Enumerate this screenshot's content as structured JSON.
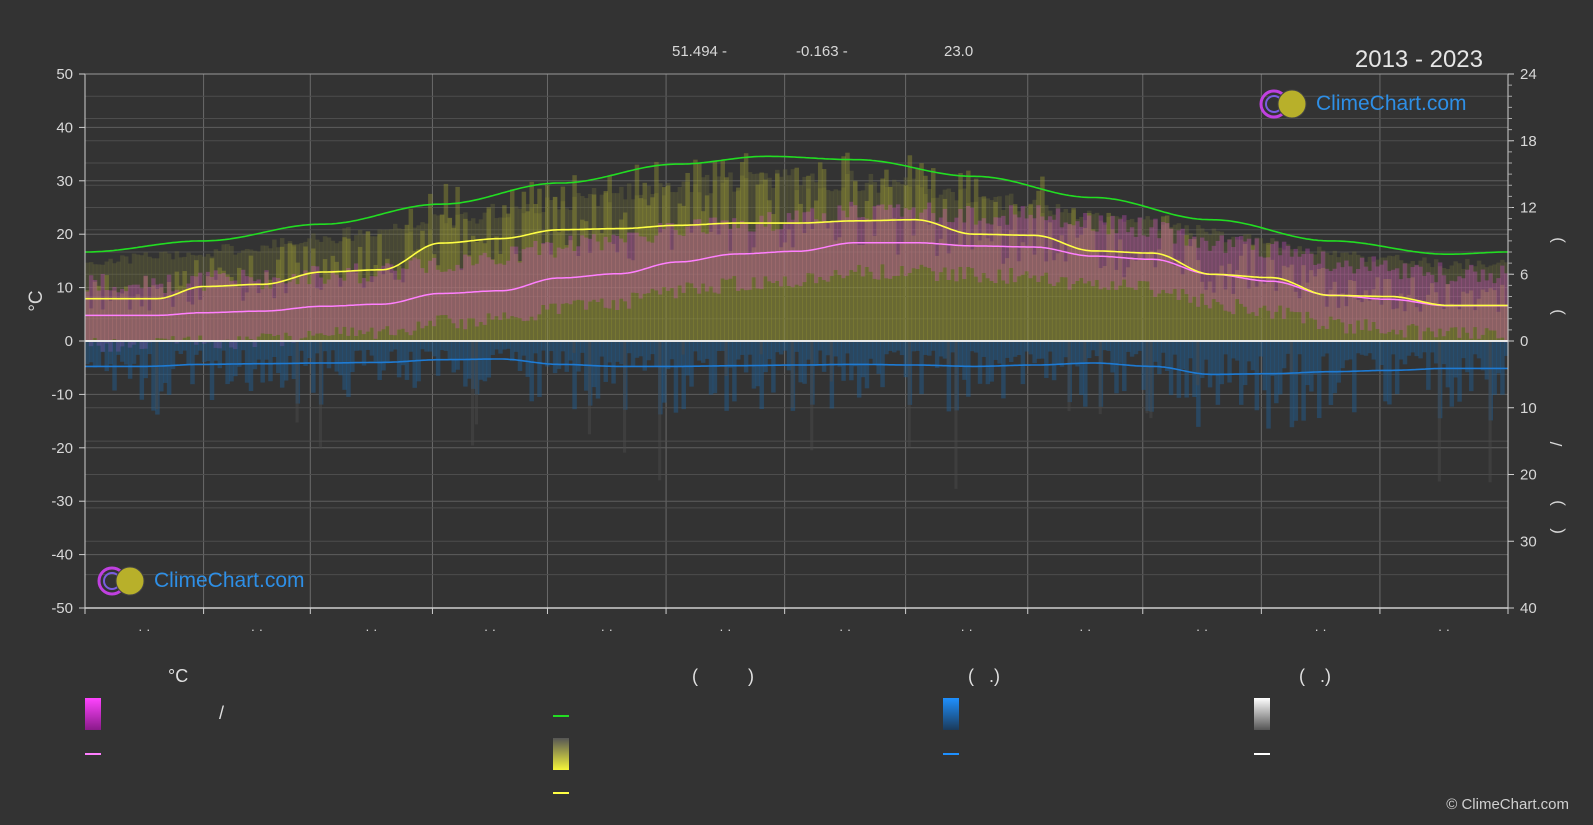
{
  "header": {
    "latitude": "51.494 -",
    "longitude": "-0.163 -",
    "elevation": "23.0",
    "year_range": "2013 - 2023"
  },
  "logo_text": "ClimeChart.com",
  "copyright": "© ClimeChart.com",
  "legend": {
    "temp_header": "°C",
    "daylight_header": "(          )",
    "rain_header": "(   .)",
    "snow_header": "(   .)",
    "temp_range_slash": "/"
  },
  "colors": {
    "background": "#333333",
    "temp_band": "#e040e0",
    "temp_line": "#ff7fff",
    "daylight_line": "#22dd22",
    "sunshine_band": "#b8b82a",
    "sunshine_line": "#ffff44",
    "rain": "#1e7bd4",
    "snow": "#cccccc"
  },
  "chart_data": {
    "type": "line",
    "x_ticks": [
      "· ·",
      "· ·",
      "· ·",
      "· ·",
      "· ·",
      "· ·",
      "· ·",
      "· ·",
      "· ·",
      "· ·",
      "· ·",
      "· ·"
    ],
    "left_axis": {
      "label": "°C",
      "range": [
        -50,
        50
      ],
      "ticks": [
        50,
        40,
        30,
        20,
        10,
        0,
        -10,
        -20,
        -30,
        -40,
        -50
      ]
    },
    "right_axis_top": {
      "range": [
        0,
        24
      ],
      "ticks": [
        24,
        18,
        12,
        6,
        0
      ]
    },
    "right_axis_bottom": {
      "range": [
        0,
        40
      ],
      "ticks": [
        0,
        10,
        20,
        30,
        40
      ]
    },
    "right_axis_label_chars": [
      ")",
      ")",
      "/",
      ")",
      "·",
      "("
    ],
    "grid": true,
    "months_x": [
      0.5,
      1.5,
      2.5,
      3.5,
      4.5,
      5.5,
      6.5,
      7.5,
      8.5,
      9.5,
      10.5,
      11.5
    ],
    "series": [
      {
        "key": "daylight",
        "axis": "right_top",
        "smooth": true,
        "x": [
          0,
          1,
          2,
          3,
          4,
          5,
          5.75,
          6.5,
          7.5,
          8.5,
          9.5,
          10.5,
          11.5,
          12
        ],
        "values": [
          8.0,
          9.0,
          10.5,
          12.3,
          14.2,
          15.9,
          16.6,
          16.3,
          14.8,
          12.9,
          10.9,
          9.0,
          7.8,
          8.0
        ]
      },
      {
        "key": "sunshine_mean",
        "axis": "right_top",
        "smooth": false,
        "x": [
          0,
          0.6,
          1.0,
          1.5,
          2.0,
          2.5,
          3.0,
          3.5,
          4.0,
          4.5,
          5.0,
          5.5,
          6.0,
          6.5,
          7.0,
          7.5,
          8.0,
          8.5,
          9.0,
          9.5,
          10.0,
          10.5,
          11.0,
          11.5,
          12.0
        ],
        "values": [
          3.8,
          3.8,
          4.9,
          5.1,
          6.2,
          6.4,
          8.8,
          9.2,
          10.0,
          10.1,
          10.4,
          10.6,
          10.6,
          10.8,
          10.9,
          9.6,
          9.5,
          8.1,
          7.9,
          6.0,
          5.7,
          4.1,
          4.0,
          3.2,
          3.2
        ]
      },
      {
        "key": "temperature_mean",
        "axis": "left",
        "smooth": false,
        "x": [
          0,
          0.6,
          1.0,
          1.5,
          2.0,
          2.5,
          3.0,
          3.5,
          4.0,
          4.5,
          5.0,
          5.5,
          6.0,
          6.5,
          7.0,
          7.5,
          8.0,
          8.5,
          9.0,
          9.5,
          10.0,
          10.5,
          11.0,
          11.5,
          12.0
        ],
        "values": [
          4.8,
          4.8,
          5.3,
          5.6,
          6.5,
          6.9,
          8.9,
          9.4,
          11.8,
          12.6,
          14.8,
          16.3,
          16.8,
          18.4,
          18.4,
          17.8,
          17.6,
          15.9,
          15.3,
          12.5,
          11.2,
          8.6,
          7.8,
          6.6,
          6.6
        ]
      },
      {
        "key": "rain_mean",
        "axis": "right_bottom",
        "smooth": true,
        "x": [
          0,
          0.5,
          1.0,
          1.5,
          2.0,
          2.5,
          3.0,
          3.5,
          4.0,
          4.5,
          5.0,
          5.5,
          6.0,
          6.5,
          7.0,
          7.5,
          8.0,
          8.5,
          9.0,
          9.5,
          10.0,
          10.5,
          11.0,
          11.5,
          12.0
        ],
        "values": [
          3.8,
          3.8,
          3.5,
          3.4,
          3.3,
          3.2,
          2.8,
          2.7,
          3.5,
          3.8,
          3.8,
          3.7,
          3.6,
          3.5,
          3.6,
          3.8,
          3.6,
          3.3,
          3.8,
          5.0,
          4.9,
          4.6,
          4.4,
          4.1,
          4.1
        ]
      }
    ]
  }
}
